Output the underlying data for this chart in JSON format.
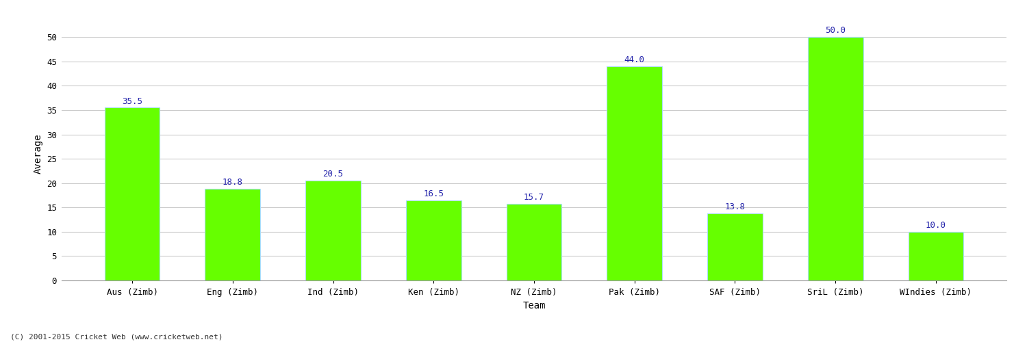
{
  "categories": [
    "Aus (Zimb)",
    "Eng (Zimb)",
    "Ind (Zimb)",
    "Ken (Zimb)",
    "NZ (Zimb)",
    "Pak (Zimb)",
    "SAF (Zimb)",
    "SriL (Zimb)",
    "WIndies (Zimb)"
  ],
  "values": [
    35.5,
    18.8,
    20.5,
    16.5,
    15.7,
    44.0,
    13.8,
    50.0,
    10.0
  ],
  "bar_color": "#66ff00",
  "bar_edge_color": "#aaddff",
  "label_color": "#2222aa",
  "xlabel": "Team",
  "ylabel": "Average",
  "ylim": [
    0,
    52
  ],
  "yticks": [
    0,
    5,
    10,
    15,
    20,
    25,
    30,
    35,
    40,
    45,
    50
  ],
  "background_color": "#ffffff",
  "grid_color": "#cccccc",
  "label_fontsize": 9,
  "axis_label_fontsize": 10,
  "tick_fontsize": 9,
  "bar_width": 0.55,
  "footer": "(C) 2001-2015 Cricket Web (www.cricketweb.net)"
}
